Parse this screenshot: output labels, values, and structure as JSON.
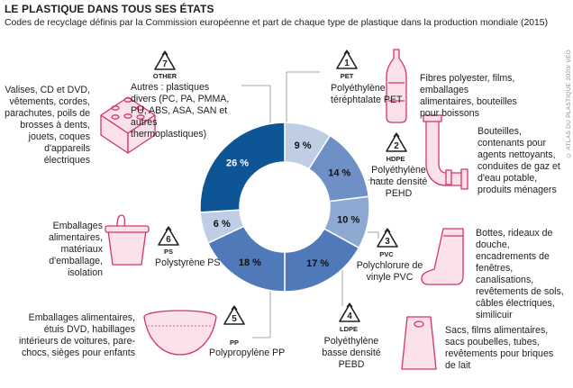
{
  "title": "LE PLASTIQUE DANS TOUS SES ÉTATS",
  "subtitle": "Codes de recyclage définis par la Commission européenne et part de chaque type de plastique dans la production mondiale (2015)",
  "credit": "© ATLAS DU PLASTIQUE 2020/ VEO",
  "colors": {
    "dark": "#0e5596",
    "mid": "#4f79b8",
    "light": "#8ea9d1",
    "pale": "#bfcde5",
    "accent": "#d6336c",
    "accent_fill": "#fbe2ea"
  },
  "chart_data": {
    "type": "pie",
    "donut": true,
    "labels": [
      "PET",
      "HDPE",
      "PVC",
      "LDPE",
      "PP",
      "PS",
      "OTHER"
    ],
    "values": [
      9,
      14,
      10,
      17,
      18,
      6,
      26
    ],
    "value_labels": [
      "9 %",
      "14 %",
      "10 %",
      "17 %",
      "18 %",
      "6 %",
      "26 %"
    ],
    "colors": [
      "#bfcde5",
      "#6f90c6",
      "#8ea9d1",
      "#4f79b8",
      "#4f79b8",
      "#bfcde5",
      "#0e5596"
    ]
  },
  "plastics": [
    {
      "code": "1",
      "abbr": "PET",
      "name": "Polyéthylène téréphtalate PET",
      "uses": "Fibres polyester, films, emballages alimentaires, bouteilles pour boissons",
      "icon": "bottle-icon"
    },
    {
      "code": "2",
      "abbr": "HDPE",
      "name": "Polyéthylène haute densité PEHD",
      "uses": "Bouteilles, contenants pour agents nettoyants, conduites de gaz et d'eau potable, produits ménagers",
      "icon": "pipe-icon"
    },
    {
      "code": "3",
      "abbr": "PVC",
      "name": "Polychlorure de vinyle PVC",
      "uses": "Bottes, rideaux de douche, encadrements de fenêtres, canalisations, revêtements de sols, câbles électriques, similicuir",
      "icon": "boot-icon"
    },
    {
      "code": "4",
      "abbr": "LDPE",
      "name": "Polyéthylène basse densité PEBD",
      "uses": "Sacs, films alimentaires, sacs poubelles, tubes, revêtements pour briques de lait",
      "icon": "bag-icon"
    },
    {
      "code": "5",
      "abbr": "PP",
      "name": "Polypropylène PP",
      "uses": "Emballages alimentaires, étuis DVD, habillages intérieurs de voitures, pare-chocs, sièges pour enfants",
      "icon": "bowl-icon"
    },
    {
      "code": "6",
      "abbr": "PS",
      "name": "Polystyrène PS",
      "uses": "Emballages alimentaires, matériaux d'emballage, isolation",
      "icon": "yogurt-cup-icon"
    },
    {
      "code": "7",
      "abbr": "OTHER",
      "name": "Autres : plastiques divers (PC, PA, PMMA, PU, ABS, ASA, SAN et autres thermoplastiques)",
      "uses": "Valises, CD et DVD, vêtements, cordes, parachutes, poils de brosses à dents, jouets, coques d'appareils électriques",
      "icon": "lego-brick-icon"
    }
  ]
}
